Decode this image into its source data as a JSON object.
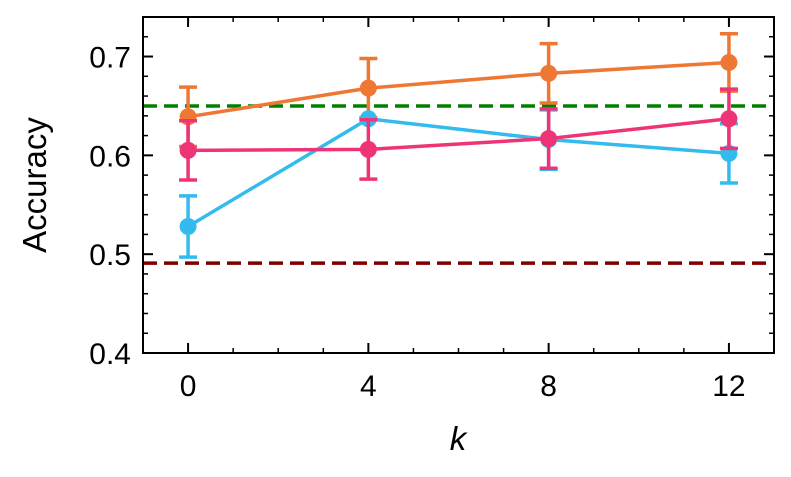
{
  "chart_data": {
    "type": "line",
    "xlabel": "k",
    "ylabel": "Accuracy",
    "xlim": [
      -1,
      13
    ],
    "ylim": [
      0.4,
      0.74
    ],
    "x_ticks": [
      0,
      4,
      8,
      12
    ],
    "x_tick_labels": [
      "0",
      "4",
      "8",
      "12"
    ],
    "x_minor_ticks": [
      -1,
      1,
      2,
      3,
      5,
      6,
      7,
      9,
      10,
      11,
      13
    ],
    "y_ticks": [
      0.4,
      0.5,
      0.6,
      0.7
    ],
    "y_tick_labels": [
      "0.4",
      "0.5",
      "0.6",
      "0.7"
    ],
    "y_minor_ticks": [
      0.42,
      0.44,
      0.46,
      0.48,
      0.52,
      0.54,
      0.56,
      0.58,
      0.62,
      0.64,
      0.66,
      0.68,
      0.72,
      0.74
    ],
    "grid": false,
    "x": [
      0,
      4,
      8,
      12
    ],
    "series": [
      {
        "color": "#ee7733",
        "values": [
          0.639,
          0.668,
          0.683,
          0.694
        ],
        "errors": [
          0.03,
          0.03,
          0.03,
          0.029
        ]
      },
      {
        "color": "#33bbee",
        "values": [
          0.528,
          0.637,
          0.616,
          0.602
        ],
        "errors": [
          0.031,
          0.0,
          0.03,
          0.03
        ]
      },
      {
        "color": "#ee3377",
        "values": [
          0.605,
          0.606,
          0.617,
          0.637
        ],
        "errors": [
          0.03,
          0.03,
          0.03,
          0.03
        ]
      }
    ],
    "reference_lines": [
      {
        "y": 0.65,
        "color": "#008000",
        "style": "dashed"
      },
      {
        "y": 0.491,
        "color": "#800000",
        "style": "dashed"
      }
    ]
  }
}
